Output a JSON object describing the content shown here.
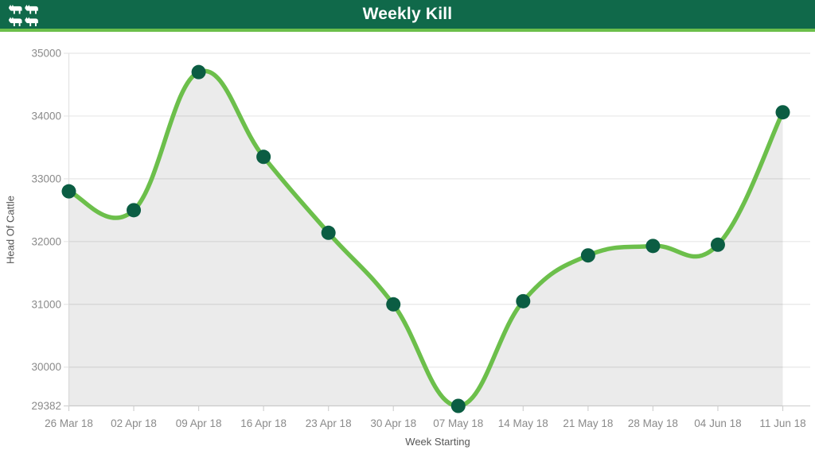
{
  "header": {
    "title": "Weekly Kill",
    "logo_icon": "cattle-herd-icon",
    "background_color": "#10694A",
    "accent_color": "#6CBF4B"
  },
  "chart_data": {
    "type": "line",
    "title": "Weekly Kill",
    "xlabel": "Week Starting",
    "ylabel": "Head Of Cattle",
    "categories": [
      "26 Mar 18",
      "02 Apr 18",
      "09 Apr 18",
      "16 Apr 18",
      "23 Apr 18",
      "30 Apr 18",
      "07 May 18",
      "14 May 18",
      "21 May 18",
      "28 May 18",
      "04 Jun 18",
      "11 Jun 18"
    ],
    "values": [
      32800,
      32500,
      34700,
      33350,
      32140,
      31000,
      29382,
      31050,
      31780,
      31930,
      31950,
      34060
    ],
    "y_ticks": [
      35000,
      34000,
      33000,
      32000,
      31000,
      30000,
      29382
    ],
    "ylim": [
      29382,
      35000
    ],
    "grid": "horizontal-only",
    "legend": "none",
    "smooth": true,
    "line_color": "#6CBF4B",
    "point_color": "#0B5D43",
    "fill_color": "rgba(0,0,0,0.08)",
    "gridline_color": "#e7e7e7",
    "axis_line_color": "#d2d2d2",
    "tick_label_color": "#8a8a8a"
  }
}
